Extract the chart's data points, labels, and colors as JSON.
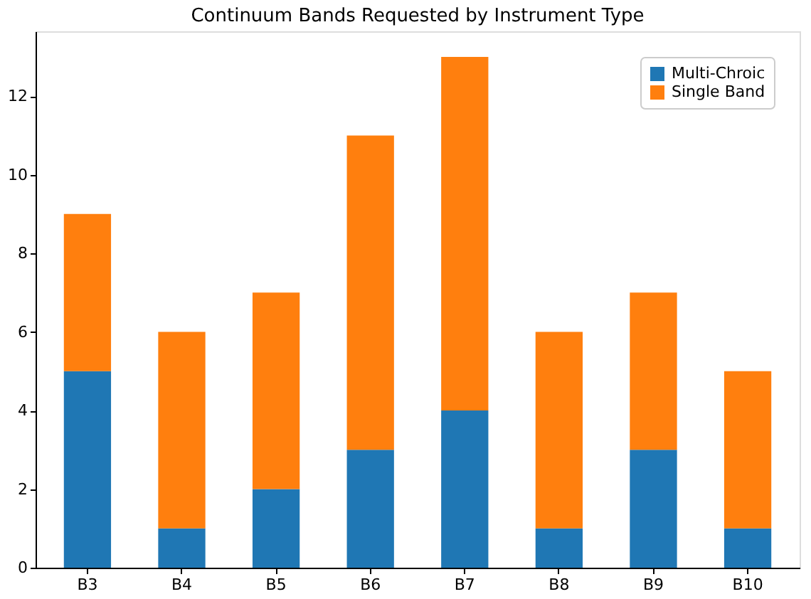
{
  "chart_data": {
    "type": "bar",
    "title": "Continuum Bands Requested by Instrument Type",
    "categories": [
      "B3",
      "B4",
      "B5",
      "B6",
      "B7",
      "B8",
      "B9",
      "B10"
    ],
    "series": [
      {
        "name": "Multi-Chroic",
        "color": "#1f77b4",
        "values": [
          5,
          1,
          2,
          3,
          4,
          1,
          3,
          1
        ]
      },
      {
        "name": "Single Band",
        "color": "#ff7f0e",
        "values": [
          4,
          5,
          5,
          8,
          9,
          5,
          4,
          4
        ]
      }
    ],
    "stacked": true,
    "ylim": [
      0,
      13.65
    ],
    "yticks": [
      0,
      2,
      4,
      6,
      8,
      10,
      12
    ],
    "grid": false,
    "legend": "top right"
  }
}
